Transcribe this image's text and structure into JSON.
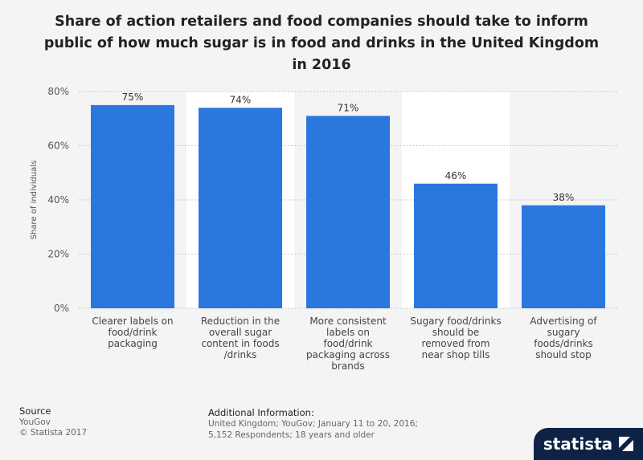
{
  "chart_data": {
    "type": "bar",
    "title_lines": [
      "Share of action retailers and food companies should take to inform",
      "public of how much sugar is in food and drinks in the United Kingdom",
      "in 2016"
    ],
    "categories": [
      [
        "Clearer labels on",
        "food/drink",
        "packaging"
      ],
      [
        "Reduction in the",
        "overall sugar",
        "content in foods",
        "/drinks"
      ],
      [
        "More consistent",
        "labels on",
        "food/drink",
        "packaging across",
        "brands"
      ],
      [
        "Sugary food/drinks",
        "should be",
        "removed from",
        "near shop tills"
      ],
      [
        "Advertising of",
        "sugary",
        "foods/drinks",
        "should stop"
      ]
    ],
    "values": [
      75,
      74,
      71,
      46,
      38
    ],
    "value_labels": [
      "75%",
      "74%",
      "71%",
      "46%",
      "38%"
    ],
    "ylabel": "Share of individuals",
    "ylim": [
      0,
      80
    ],
    "yticks": [
      0,
      20,
      40,
      60,
      80
    ],
    "ytick_labels": [
      "0%",
      "20%",
      "40%",
      "60%",
      "80%"
    ],
    "bar_color": "#2a77de",
    "grid": true
  },
  "footer": {
    "source_title": "Source",
    "source_body": "YouGov",
    "copyright": "© Statista 2017",
    "additional_title": "Additional Information:",
    "additional_body": "United Kingdom; YouGov; January 11 to 20, 2016; 5,152 Respondents; 18 years and older"
  },
  "logo": {
    "text": "statista"
  }
}
